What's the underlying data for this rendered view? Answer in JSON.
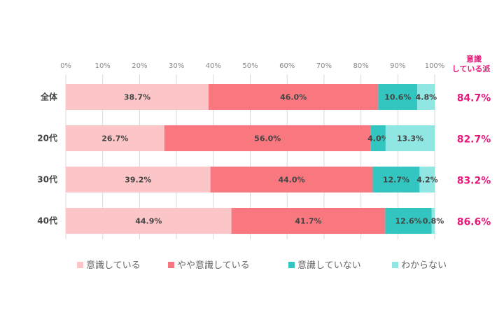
{
  "chart_data": {
    "type": "bar",
    "orientation": "horizontal",
    "stacked": true,
    "categories": [
      "全体",
      "20代",
      "30代",
      "40代"
    ],
    "xlim": [
      0,
      100
    ],
    "xticks": [
      "0%",
      "10%",
      "20%",
      "30%",
      "40%",
      "50%",
      "60%",
      "70%",
      "80%",
      "90%",
      "100%"
    ],
    "grid": true,
    "legend_position": "bottom",
    "series": [
      {
        "name": "意識している",
        "color": "#fcc5c8",
        "values": [
          38.7,
          26.7,
          39.2,
          44.9
        ],
        "labels": [
          "38.7%",
          "26.7%",
          "39.2%",
          "44.9%"
        ]
      },
      {
        "name": "やや意識している",
        "color": "#f9787f",
        "values": [
          46.0,
          56.0,
          44.0,
          41.7
        ],
        "labels": [
          "46.0%",
          "56.0%",
          "44.0%",
          "41.7%"
        ]
      },
      {
        "name": "意識していない",
        "color": "#33c6c0",
        "values": [
          10.6,
          4.0,
          12.7,
          12.6
        ],
        "labels": [
          "10.6%",
          "4.0%",
          "12.7%",
          "12.6%"
        ]
      },
      {
        "name": "わからない",
        "color": "#8fe6e2",
        "values": [
          4.8,
          13.3,
          4.2,
          0.8
        ],
        "labels": [
          "4.8%",
          "13.3%",
          "4.2%",
          "0.8%"
        ]
      }
    ],
    "side_column": {
      "header": [
        "意識",
        "している派"
      ],
      "values": [
        "84.7%",
        "82.7%",
        "83.2%",
        "86.6%"
      ],
      "color": "#e6197a"
    }
  }
}
